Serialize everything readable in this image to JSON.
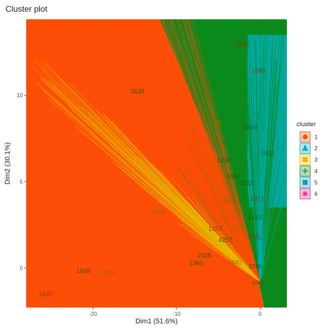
{
  "chart_data": {
    "type": "scatter",
    "title": "Cluster plot",
    "xlabel": "Dim1 (51.6%)",
    "ylabel": "Dim2 (30.1%)",
    "xlim": [
      -28,
      3.2
    ],
    "ylim": [
      -2.3,
      14.4
    ],
    "x_ticks": [
      -20,
      -10,
      0
    ],
    "y_ticks": [
      0,
      5,
      10
    ],
    "x_tick_labels": [
      "-20",
      "-10",
      "0"
    ],
    "y_tick_labels": [
      "0",
      "5",
      "10"
    ],
    "grid": false,
    "legend": {
      "title": "cluster",
      "placement": "right",
      "entries": [
        {
          "label": "1",
          "color": "#F8510D",
          "shape": "circle"
        },
        {
          "label": "2",
          "color": "#00AFBB",
          "shape": "triangle"
        },
        {
          "label": "3",
          "color": "#E7B800",
          "shape": "square"
        },
        {
          "label": "4",
          "color": "#0B8A1C",
          "shape": "plus"
        },
        {
          "label": "5",
          "color": "#1A9AB5",
          "shape": "square-x"
        },
        {
          "label": "6",
          "color": "#E7298A",
          "shape": "asterisk"
        }
      ]
    },
    "centroid": [
      0,
      -0.8
    ],
    "series": [
      {
        "cluster": "1",
        "color": "#FC4E07",
        "region": "left and lower fan",
        "x_range": [
          -28,
          0
        ],
        "y_range": [
          -2.3,
          14.4
        ]
      },
      {
        "cluster": "3",
        "color": "#E7B800",
        "region": "diagonal band",
        "x_range": [
          -27,
          0
        ],
        "y_range": [
          0.5,
          12
        ]
      },
      {
        "cluster": "4",
        "color": "#0B8A1C",
        "region": "upper right",
        "x_range": [
          -10,
          3.2
        ],
        "y_range": [
          -2.3,
          14.4
        ]
      },
      {
        "cluster": "2",
        "color": "#00AFBB",
        "region": "far right strip",
        "x_range": [
          -2,
          3.2
        ],
        "y_range": [
          3,
          14
        ]
      }
    ],
    "annotations": [
      {
        "text": "1637",
        "x": -26.5,
        "y": -1.65
      },
      {
        "text": "1182",
        "x": -6.2,
        "y": 8.3
      },
      {
        "text": "1208",
        "x": -5.2,
        "y": 6.1
      },
      {
        "text": "4257",
        "x": -5.0,
        "y": 1.5
      },
      {
        "text": "3621",
        "x": -1.5,
        "y": 1.65
      },
      {
        "text": "1642",
        "x": -3.8,
        "y": 0.2
      },
      {
        "text": "2528",
        "x": -7.5,
        "y": 0.6
      },
      {
        "text": "1360",
        "x": -8.5,
        "y": 0.15
      },
      {
        "text": "1253",
        "x": -6.2,
        "y": 2.15
      },
      {
        "text": "3724",
        "x": -3.2,
        "y": 2.2
      },
      {
        "text": "3013",
        "x": -2.5,
        "y": 4.8
      },
      {
        "text": "1683",
        "x": -4.0,
        "y": 5.2
      },
      {
        "text": "1645",
        "x": -1.0,
        "y": 11.3
      },
      {
        "text": "2825",
        "x": -13.0,
        "y": 3.1
      },
      {
        "text": "3638",
        "x": -15.5,
        "y": 10.1
      },
      {
        "text": "3828",
        "x": -2.0,
        "y": 8.0
      },
      {
        "text": "4250",
        "x": -3.0,
        "y": 12.8
      },
      {
        "text": "2631",
        "x": -4.5,
        "y": 3.8
      },
      {
        "text": "1443",
        "x": -1.5,
        "y": 2.8
      },
      {
        "text": "3706",
        "x": -1.4,
        "y": -0.05
      },
      {
        "text": "4950",
        "x": -1.0,
        "y": -1.0
      },
      {
        "text": "2014",
        "x": -19.0,
        "y": -0.4
      },
      {
        "text": "1649",
        "x": -22.0,
        "y": -0.3
      },
      {
        "text": "3411",
        "x": 0.2,
        "y": 6.5
      },
      {
        "text": "1371",
        "x": -1.2,
        "y": 3.9
      }
    ]
  }
}
